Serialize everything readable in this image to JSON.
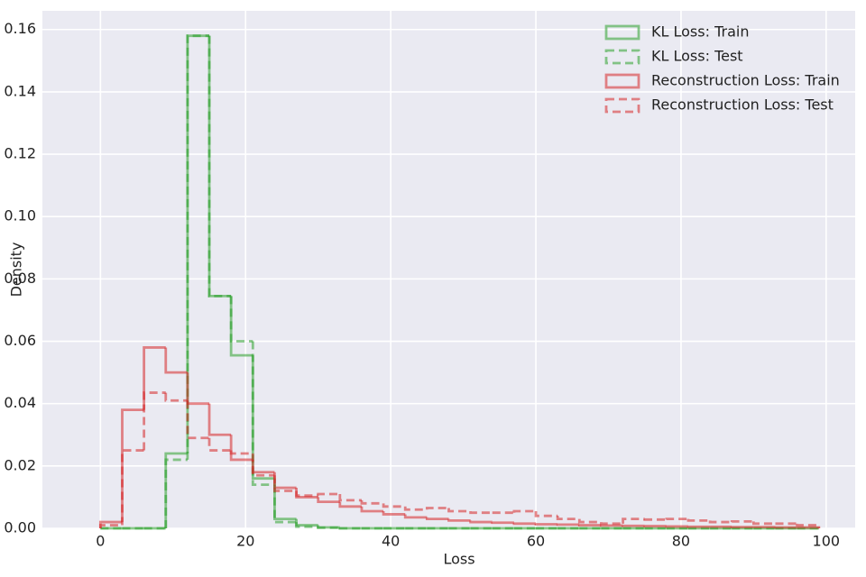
{
  "chart_data": {
    "type": "histogram",
    "xlabel": "Loss",
    "ylabel": "Density",
    "xlim": [
      -8,
      104
    ],
    "ylim": [
      0,
      0.166
    ],
    "xticks": [
      0,
      20,
      40,
      60,
      80,
      100
    ],
    "yticks": [
      {
        "value": 0,
        "label": "0.00"
      },
      {
        "value": 0.02,
        "label": "0.02"
      },
      {
        "value": 0.04,
        "label": "0.04"
      },
      {
        "value": 0.06,
        "label": "0.06"
      },
      {
        "value": 0.08,
        "label": "0.08"
      },
      {
        "value": 0.1,
        "label": "0.10"
      },
      {
        "value": 0.12,
        "label": "0.12"
      },
      {
        "value": 0.14,
        "label": "0.14"
      },
      {
        "value": 0.16,
        "label": "0.16"
      }
    ],
    "grid": true,
    "legend": "upper right",
    "bins": [
      0,
      3,
      6,
      9,
      12,
      15,
      18,
      21,
      24,
      27,
      30,
      33,
      36,
      39,
      42,
      45,
      48,
      51,
      54,
      57,
      60,
      63,
      66,
      69,
      72,
      75,
      78,
      81,
      84,
      87,
      90,
      93,
      96,
      99
    ],
    "series": [
      {
        "name": "KL Loss: Train",
        "color": "#2ca02c",
        "dashed": false,
        "values": [
          0,
          0,
          0,
          0.024,
          0.158,
          0.0745,
          0.0555,
          0.016,
          0.003,
          0.001,
          0.0003,
          0,
          0,
          0,
          0,
          0,
          0,
          0,
          0,
          0,
          0,
          0,
          0,
          0,
          0,
          0,
          0,
          0,
          0,
          0,
          0,
          0,
          0
        ]
      },
      {
        "name": "KL Loss: Test",
        "color": "#2ca02c",
        "dashed": true,
        "values": [
          0,
          0,
          0,
          0.022,
          0.158,
          0.0745,
          0.06,
          0.014,
          0.002,
          0.0005,
          0.0002,
          0,
          0,
          0,
          0,
          0,
          0,
          0,
          0,
          0,
          0,
          0,
          0,
          0,
          0,
          0,
          0,
          0,
          0,
          0,
          0,
          0,
          0
        ]
      },
      {
        "name": "Reconstruction Loss: Train",
        "color": "#d62728",
        "dashed": false,
        "values": [
          0.002,
          0.038,
          0.058,
          0.05,
          0.04,
          0.03,
          0.022,
          0.018,
          0.013,
          0.01,
          0.0085,
          0.007,
          0.0055,
          0.0045,
          0.0035,
          0.003,
          0.0025,
          0.002,
          0.0018,
          0.0015,
          0.0013,
          0.0012,
          0.001,
          0.0009,
          0.0008,
          0.0007,
          0.0006,
          0.0005,
          0.0005,
          0.0004,
          0.0004,
          0.0003,
          0.0003
        ]
      },
      {
        "name": "Reconstruction Loss: Test",
        "color": "#d62728",
        "dashed": true,
        "values": [
          0.001,
          0.025,
          0.0435,
          0.041,
          0.029,
          0.025,
          0.024,
          0.017,
          0.012,
          0.0105,
          0.011,
          0.009,
          0.008,
          0.007,
          0.006,
          0.0065,
          0.0055,
          0.005,
          0.005,
          0.0055,
          0.004,
          0.003,
          0.002,
          0.0015,
          0.003,
          0.0028,
          0.003,
          0.0025,
          0.002,
          0.0022,
          0.0015,
          0.0015,
          0.001
        ]
      }
    ]
  }
}
